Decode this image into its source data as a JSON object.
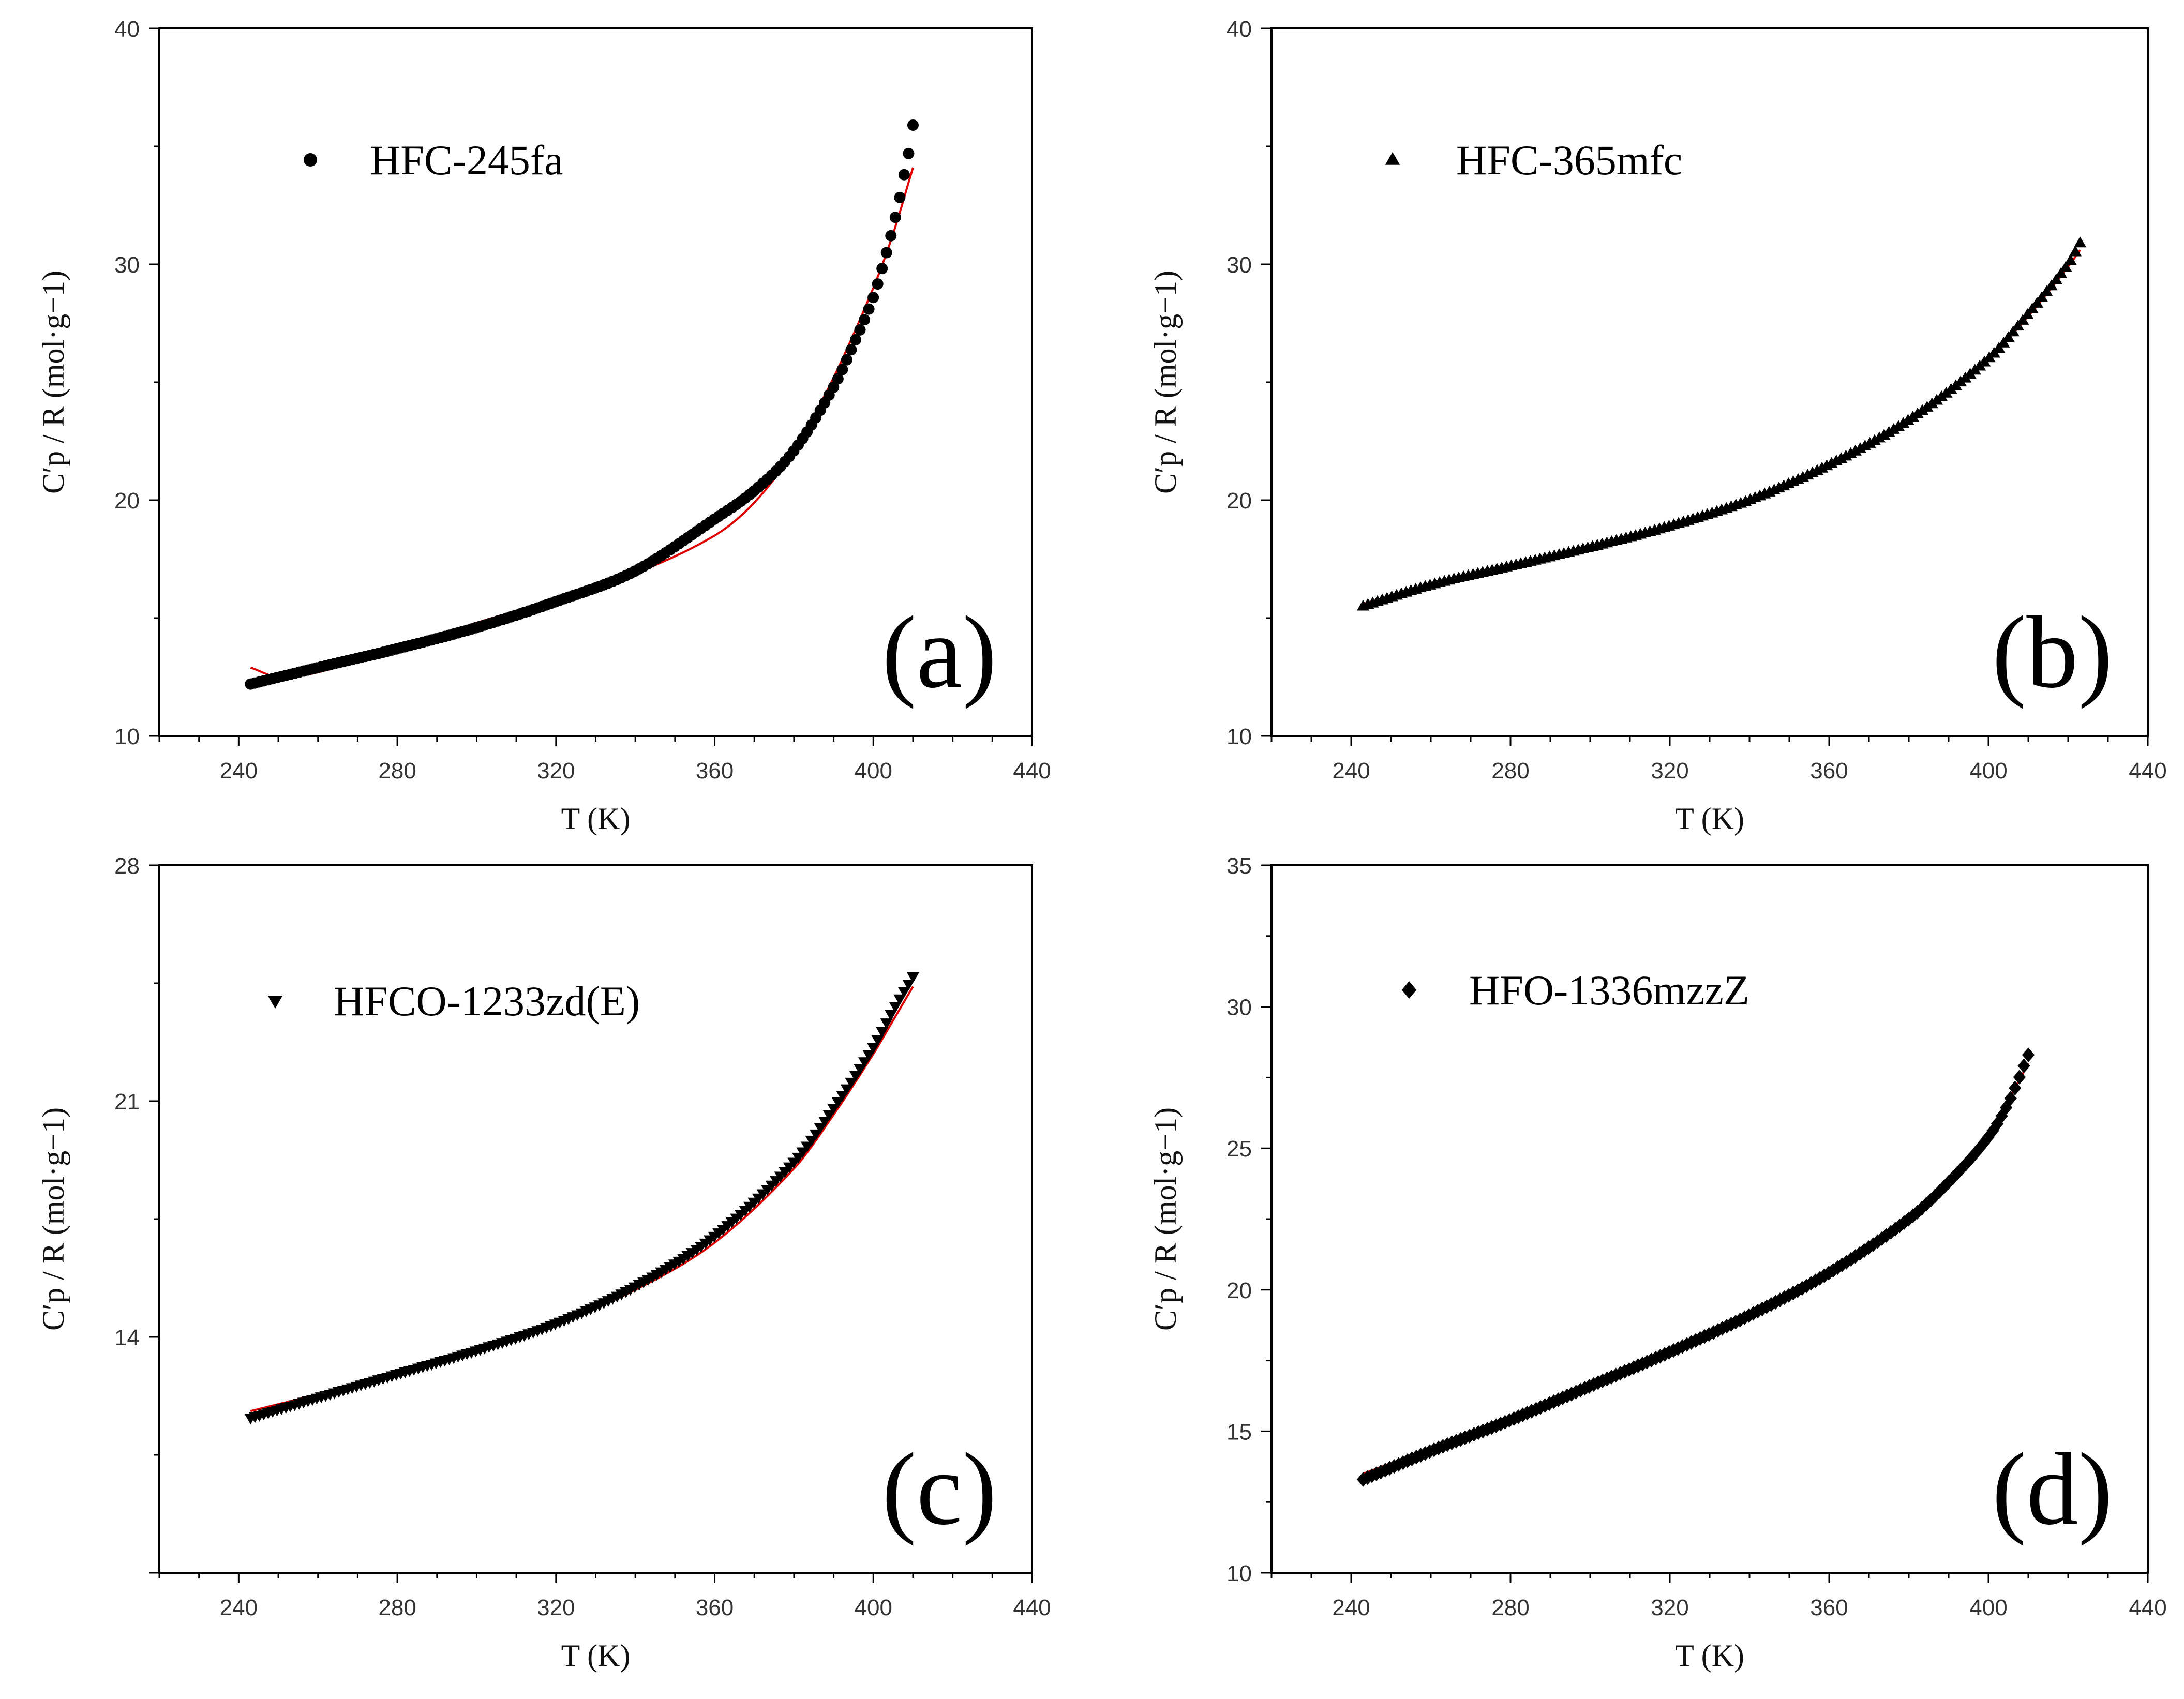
{
  "chart_data": [
    {
      "type": "scatter",
      "panel_label": "(a)",
      "legend": "HFC-245fa",
      "marker": "circle",
      "xlabel": "T (K)",
      "ylabel": "C′p / R (mol·g−1)",
      "xlim": [
        220,
        440
      ],
      "ylim": [
        10,
        40
      ],
      "xticks": [
        240,
        280,
        320,
        360,
        400,
        440
      ],
      "yticks": [
        10,
        20,
        30,
        40
      ],
      "data_anchor": {
        "x": [
          243,
          260,
          280,
          300,
          320,
          340,
          360,
          370,
          380,
          390,
          395,
          400,
          403,
          405,
          407,
          408,
          409,
          410
        ],
        "y": [
          12.2,
          12.9,
          13.7,
          14.6,
          15.7,
          17.0,
          19.2,
          20.4,
          22.1,
          24.8,
          26.6,
          28.6,
          30.3,
          31.6,
          33.1,
          34.0,
          34.8,
          35.9
        ]
      },
      "fit_anchor": {
        "x": [
          243,
          250,
          260,
          280,
          300,
          320,
          340,
          360,
          370,
          380,
          390,
          400,
          405,
          410
        ],
        "y": [
          12.9,
          12.5,
          12.7,
          13.7,
          14.8,
          15.8,
          16.9,
          18.5,
          19.9,
          22.1,
          25.2,
          29.0,
          31.3,
          34.1
        ]
      }
    },
    {
      "type": "scatter",
      "panel_label": "(b)",
      "legend": "HFC-365mfc",
      "marker": "triangle-up",
      "xlabel": "T (K)",
      "ylabel": "C′p / R (mol·g−1)",
      "xlim": [
        220,
        440
      ],
      "ylim": [
        10,
        40
      ],
      "xticks": [
        240,
        280,
        320,
        360,
        400,
        440
      ],
      "yticks": [
        10,
        20,
        30,
        40
      ],
      "data_anchor": {
        "x": [
          243,
          260,
          280,
          300,
          320,
          340,
          360,
          380,
          400,
          410,
          420,
          423
        ],
        "y": [
          15.5,
          16.4,
          17.2,
          18.0,
          18.9,
          20.0,
          21.5,
          23.4,
          26.0,
          27.9,
          30.0,
          30.9
        ]
      },
      "fit_anchor": {
        "x": [
          243,
          260,
          280,
          300,
          320,
          340,
          360,
          380,
          400,
          410,
          420,
          423
        ],
        "y": [
          15.6,
          16.4,
          17.2,
          18.0,
          18.9,
          20.0,
          21.5,
          23.4,
          26.0,
          27.8,
          29.9,
          30.6
        ]
      }
    },
    {
      "type": "scatter",
      "panel_label": "(c)",
      "legend": "HFCO-1233zd(E)",
      "marker": "triangle-down",
      "xlabel": "T (K)",
      "ylabel": "C′p / R (mol·g−1)",
      "xlim": [
        220,
        440
      ],
      "ylim": [
        7,
        28
      ],
      "xticks": [
        240,
        280,
        320,
        360,
        400,
        440
      ],
      "yticks": [
        14,
        21,
        28
      ],
      "data_anchor": {
        "x": [
          243,
          260,
          280,
          300,
          320,
          340,
          360,
          380,
          390,
          400,
          405,
          410
        ],
        "y": [
          11.6,
          12.2,
          12.9,
          13.6,
          14.4,
          15.5,
          17.0,
          19.2,
          20.8,
          22.6,
          23.7,
          24.7
        ]
      },
      "fit_anchor": {
        "x": [
          243,
          260,
          280,
          300,
          320,
          340,
          360,
          380,
          390,
          400,
          405,
          410
        ],
        "y": [
          11.8,
          12.3,
          12.9,
          13.6,
          14.4,
          15.4,
          16.8,
          19.0,
          20.6,
          22.4,
          23.4,
          24.4
        ]
      }
    },
    {
      "type": "scatter",
      "panel_label": "(d)",
      "legend": "HFO-1336mzzZ",
      "marker": "diamond",
      "xlabel": "T (K)",
      "ylabel": "C′p / R (mol·g−1)",
      "xlim": [
        220,
        440
      ],
      "ylim": [
        10,
        35
      ],
      "xticks": [
        240,
        280,
        320,
        360,
        400,
        440
      ],
      "yticks": [
        10,
        15,
        20,
        25,
        30,
        35
      ],
      "data_anchor": {
        "x": [
          243,
          260,
          280,
          300,
          320,
          340,
          360,
          380,
          390,
          400,
          405,
          410
        ],
        "y": [
          13.3,
          14.3,
          15.4,
          16.6,
          17.8,
          19.1,
          20.6,
          22.5,
          23.8,
          25.4,
          26.6,
          28.3
        ]
      },
      "fit_anchor": {
        "x": [
          243,
          260,
          280,
          300,
          320,
          340,
          360,
          380,
          390,
          400,
          405,
          410
        ],
        "y": [
          13.5,
          14.4,
          15.5,
          16.7,
          17.9,
          19.2,
          20.7,
          22.6,
          23.9,
          25.6,
          26.7,
          28.0
        ]
      }
    }
  ],
  "style": {
    "marker_color": "#000000",
    "fit_color": "#e00000",
    "axis_color": "#000000"
  }
}
